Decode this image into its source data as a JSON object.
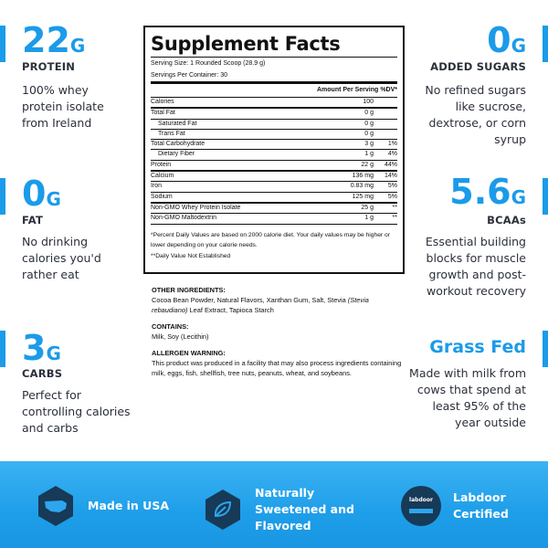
{
  "left_features": [
    {
      "value": "22",
      "unit": "G",
      "label": "PROTEIN",
      "description": "100% whey protein isolate from Ireland"
    },
    {
      "value": "0",
      "unit": "G",
      "label": "FAT",
      "description": "No drinking calories you'd rather eat"
    },
    {
      "value": "3",
      "unit": "G",
      "label": "CARBS",
      "description": "Perfect for controlling calories and carbs"
    }
  ],
  "right_features": [
    {
      "value": "0",
      "unit": "G",
      "label": "ADDED SUGARS",
      "description": "No refined sugars like sucrose, dextrose, or corn syrup"
    },
    {
      "value": "5.6",
      "unit": "G",
      "label": "BCAAs",
      "description": "Essential building blocks for muscle growth and post-workout recovery"
    },
    {
      "title": "Grass Fed",
      "description": "Made with milk from cows that spend at least 95% of the year outside"
    }
  ],
  "supplement_facts": {
    "title": "Supplement Facts",
    "serving_size": "Serving Size: 1 Rounded Scoop (28.9 g)",
    "servings_per_container": "Servings Per Container: 30",
    "amount_header": "Amount Per Serving",
    "dv_header": "%DV*",
    "rows": [
      {
        "name": "Calories",
        "amount": "100"
      },
      {
        "name": "Total Fat",
        "amount": "0 g"
      },
      {
        "name": "Saturated Fat",
        "amount": "0 g"
      },
      {
        "name": "Trans Fat",
        "amount": "0 g"
      },
      {
        "name": "Total Carbohydrate",
        "amount": "3 g",
        "dv": "1%"
      },
      {
        "name": "Dietary Fiber",
        "amount": "1 g",
        "dv": "4%"
      },
      {
        "name": "Protein",
        "amount": "22 g",
        "dv": "44%"
      },
      {
        "name": "Calcium",
        "amount": "136 mg",
        "dv": "14%"
      },
      {
        "name": "Iron",
        "amount": "0.83 mg",
        "dv": "5%"
      },
      {
        "name": "Sodium",
        "amount": "125 mg",
        "dv": "5%"
      },
      {
        "name": "Non-GMO Whey Protein Isolate",
        "amount": "25 g",
        "dv": "**"
      },
      {
        "name": "Non-GMO Maltodextrin",
        "amount": "1 g",
        "dv": "**"
      }
    ],
    "footnote": "*Percent Daily Values are based on 2000 calorie diet. Your daily values may be higher or lower depending on your calorie needs.",
    "footnote_2": "**Daily Value Not Established"
  },
  "ingredients": {
    "heading": "OTHER INGREDIENTS:",
    "text_1": "Cocoa Bean Powder, Natural Flavors, Xanthan Gum, Salt, Stevia",
    "text_italic": "(Stevia rebaudiano)",
    "text_2": "Leaf Extract, Tapioca Starch",
    "contains_heading": "CONTAINS:",
    "contains": "Milk, Soy (Lecithin)",
    "allergen_heading": "ALLERGEN WARNING:",
    "allergen": "This product was produced in a facility that may also process ingredients containing milk, eggs, fish, shellfish, tree nuts, peanuts, wheat, and soybeans."
  },
  "badges": [
    {
      "label": "Made in USA"
    },
    {
      "label": "Naturally Sweetened and Flavored"
    },
    {
      "label": "Labdoor Certified",
      "icon_text": "labdoor"
    }
  ]
}
